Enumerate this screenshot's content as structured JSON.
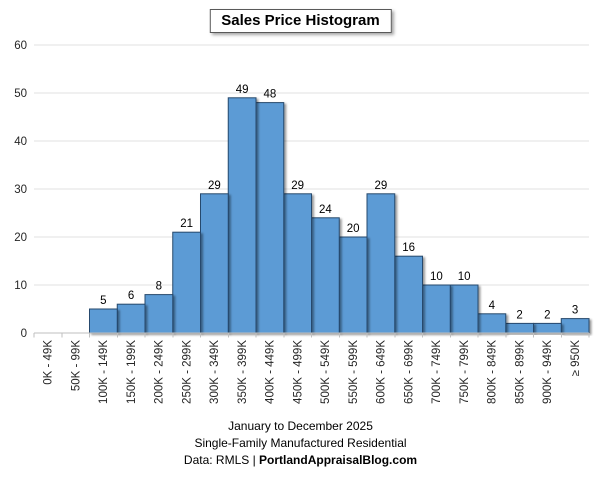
{
  "title": "Sales Price Histogram",
  "footer": {
    "line1": "January to December 2025",
    "line2": "Single-Family Manufactured Residential",
    "line3_prefix": "Data: RMLS | ",
    "line3_bold": "PortlandAppraisalBlog.com"
  },
  "colors": {
    "bar_fill": "#5B9BD5",
    "bar_border": "#27496D",
    "gridline": "#E2E2E2",
    "axis_line": "#BFBFBF",
    "tick_text": "#262626",
    "label_text": "#000000"
  },
  "chart_data": {
    "type": "bar",
    "title": "Sales Price Histogram",
    "subtitle_lines": [
      "January to December 2025",
      "Single-Family Manufactured Residential",
      "Data: RMLS | PortlandAppraisalBlog.com"
    ],
    "categories": [
      "0K - 49K",
      "50K - 99K",
      "100K - 149K",
      "150K - 199K",
      "200K - 249K",
      "250K - 299K",
      "300K - 349K",
      "350K - 399K",
      "400K - 449K",
      "450K - 499K",
      "500K - 549K",
      "550K - 599K",
      "600K - 649K",
      "650K - 699K",
      "700K - 749K",
      "750K - 799K",
      "800K - 849K",
      "850K - 899K",
      "900K - 949K",
      "≥ 950K"
    ],
    "values": [
      0,
      0,
      5,
      6,
      8,
      21,
      29,
      49,
      48,
      29,
      24,
      20,
      29,
      16,
      10,
      10,
      4,
      2,
      2,
      3
    ],
    "xlabel": "",
    "ylabel": "",
    "ylim": [
      0,
      60
    ],
    "ytick_step": 10,
    "yticks": [
      0,
      10,
      20,
      30,
      40,
      50,
      60
    ],
    "grid": "horizontal",
    "bar_gap": 0,
    "data_labels": true,
    "x_label_rotation": -90,
    "legend": "none"
  }
}
